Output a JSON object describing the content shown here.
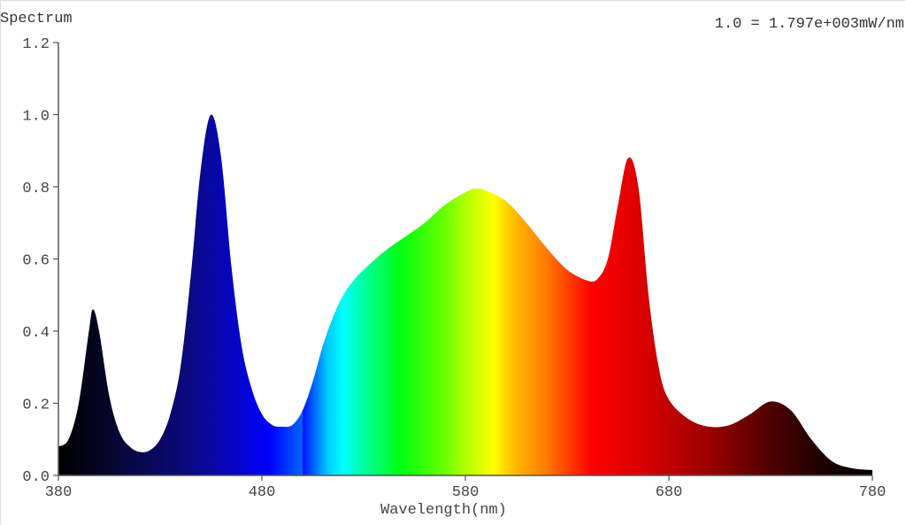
{
  "header": {
    "title": "Spectrum",
    "scale_note": "1.0 = 1.797e+003mW/nm"
  },
  "axes": {
    "xlabel": "Wavelength(nm)",
    "x_ticks": [
      "380",
      "480",
      "580",
      "680",
      "780"
    ],
    "y_ticks": [
      "0.0",
      "0.2",
      "0.4",
      "0.6",
      "0.8",
      "1.0",
      "1.2"
    ]
  },
  "chart_data": {
    "type": "area",
    "title": "Spectrum",
    "subtitle": "1.0 = 1.797e+003mW/nm",
    "xlabel": "Wavelength(nm)",
    "ylabel": "",
    "xlim": [
      380,
      780
    ],
    "ylim": [
      0,
      1.2
    ],
    "x_ticks": [
      380,
      480,
      580,
      680,
      780
    ],
    "y_ticks": [
      0.0,
      0.2,
      0.4,
      0.6,
      0.8,
      1.0,
      1.2
    ],
    "grid": false,
    "legend": "none",
    "fill": "visible-spectrum color gradient",
    "x": [
      380,
      385,
      390,
      395,
      397,
      400,
      405,
      410,
      415,
      420,
      425,
      430,
      435,
      440,
      445,
      450,
      455,
      460,
      465,
      470,
      475,
      480,
      485,
      490,
      495,
      500,
      505,
      510,
      515,
      520,
      525,
      530,
      540,
      550,
      560,
      570,
      580,
      585,
      590,
      600,
      610,
      620,
      630,
      640,
      645,
      650,
      655,
      660,
      665,
      670,
      675,
      680,
      690,
      700,
      710,
      720,
      730,
      740,
      750,
      760,
      770,
      780
    ],
    "values": [
      0.08,
      0.1,
      0.2,
      0.4,
      0.46,
      0.4,
      0.22,
      0.12,
      0.08,
      0.065,
      0.07,
      0.1,
      0.17,
      0.3,
      0.55,
      0.85,
      1.0,
      0.88,
      0.58,
      0.36,
      0.24,
      0.17,
      0.14,
      0.135,
      0.14,
      0.18,
      0.26,
      0.36,
      0.44,
      0.5,
      0.54,
      0.57,
      0.62,
      0.66,
      0.7,
      0.75,
      0.785,
      0.795,
      0.79,
      0.76,
      0.7,
      0.63,
      0.57,
      0.54,
      0.545,
      0.6,
      0.75,
      0.88,
      0.8,
      0.5,
      0.3,
      0.21,
      0.155,
      0.135,
      0.14,
      0.17,
      0.205,
      0.18,
      0.1,
      0.04,
      0.02,
      0.015
    ],
    "peaks": [
      {
        "wavelength": 397,
        "value": 0.46
      },
      {
        "wavelength": 455,
        "value": 1.0
      },
      {
        "wavelength": 585,
        "value": 0.795
      },
      {
        "wavelength": 660,
        "value": 0.88
      },
      {
        "wavelength": 730,
        "value": 0.205
      }
    ]
  }
}
